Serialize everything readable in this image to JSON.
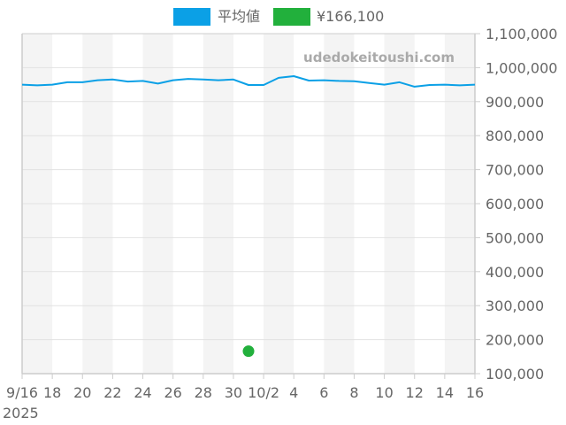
{
  "legend": {
    "items": [
      {
        "label": "平均値",
        "color": "#0ba0e6"
      },
      {
        "label": "¥166,100",
        "color": "#22b03c"
      }
    ]
  },
  "watermark": "udedokeitoushi.com",
  "colors": {
    "line": "#0ba0e6",
    "point": "#22b03c",
    "band": "#f4f4f4",
    "grid": "#e2e2e2",
    "axis": "#cccccc",
    "text": "#666666"
  },
  "chart_data": {
    "type": "line",
    "title": "",
    "xlabel": "",
    "ylabel": "",
    "x_start_label": "9/16",
    "x_year_label": "2025",
    "x_tick_labels": [
      "9/16",
      "18",
      "20",
      "22",
      "24",
      "26",
      "28",
      "30",
      "10/2",
      "4",
      "6",
      "8",
      "10",
      "12",
      "14",
      "16"
    ],
    "y_tick_labels": [
      "100,000",
      "200,000",
      "300,000",
      "400,000",
      "500,000",
      "600,000",
      "700,000",
      "800,000",
      "900,000",
      "1,000,000",
      "1,100,000"
    ],
    "ylim": [
      100000,
      1100000
    ],
    "y_axis_position": "right",
    "grid": true,
    "legend_position": "top",
    "x": [
      "9/16",
      "9/17",
      "9/18",
      "9/19",
      "9/20",
      "9/21",
      "9/22",
      "9/23",
      "9/24",
      "9/25",
      "9/26",
      "9/27",
      "9/28",
      "9/29",
      "9/30",
      "10/1",
      "10/2",
      "10/3",
      "10/4",
      "10/5",
      "10/6",
      "10/7",
      "10/8",
      "10/9",
      "10/10",
      "10/11",
      "10/12",
      "10/13",
      "10/14",
      "10/15",
      "10/16"
    ],
    "series": [
      {
        "name": "平均値",
        "type": "line",
        "values": [
          950000,
          948000,
          950000,
          957000,
          957000,
          963000,
          965000,
          959000,
          961000,
          953000,
          963000,
          967000,
          965000,
          963000,
          965000,
          949000,
          949000,
          970000,
          975000,
          962000,
          963000,
          961000,
          960000,
          955000,
          950000,
          957000,
          944000,
          949000,
          950000,
          948000,
          950000
        ]
      },
      {
        "name": "¥166,100",
        "type": "scatter",
        "points": [
          {
            "x": "10/1",
            "y": 166100
          }
        ]
      }
    ]
  }
}
